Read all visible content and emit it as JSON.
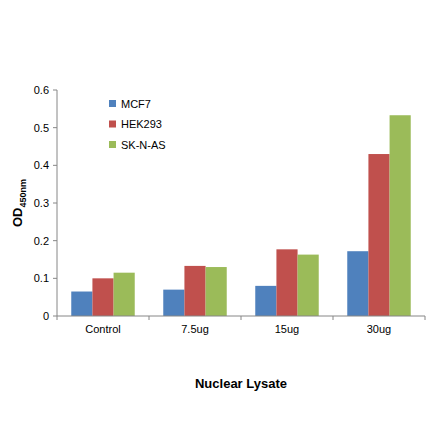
{
  "chart_data": {
    "type": "bar",
    "x_label": "Nuclear Lysate",
    "y_label": "OD450nm",
    "categories": [
      "Control",
      "7.5ug",
      "15ug",
      "30ug"
    ],
    "series": [
      {
        "name": "MCF7",
        "color": "#4f81bd",
        "values": [
          0.065,
          0.07,
          0.08,
          0.172
        ]
      },
      {
        "name": "HEK293",
        "color": "#c0504d",
        "values": [
          0.1,
          0.133,
          0.177,
          0.43
        ]
      },
      {
        "name": "SK-N-AS",
        "color": "#9bbb59",
        "values": [
          0.115,
          0.13,
          0.163,
          0.533
        ]
      }
    ],
    "ylim": [
      0,
      0.6
    ],
    "yticks": [
      0,
      0.1,
      0.2,
      0.3,
      0.4,
      0.5,
      0.6
    ],
    "grid": false,
    "legend": "upper left"
  }
}
